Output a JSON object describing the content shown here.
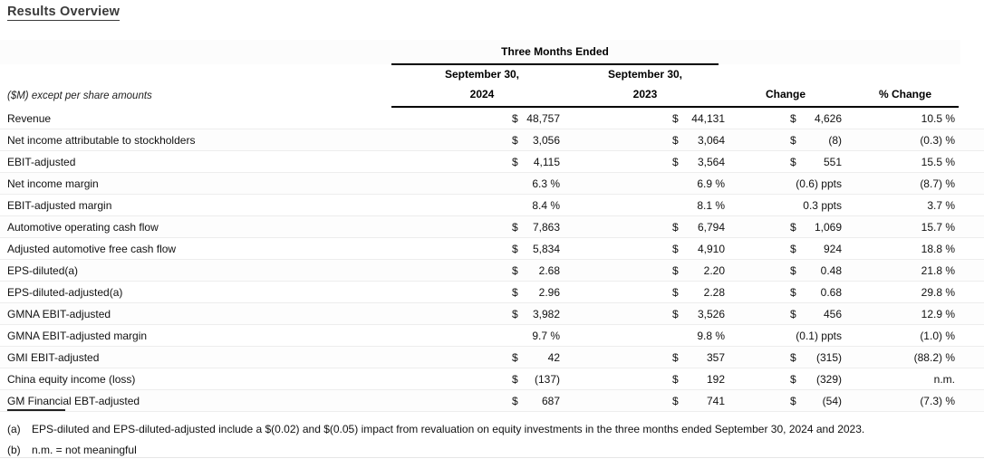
{
  "page": {
    "title": "Results Overview"
  },
  "colors": {
    "title_text": "#3a3a3a",
    "body_text": "#1a1a1a",
    "rule_black": "#000000",
    "row_separator": "#ededed"
  },
  "table": {
    "col_group_header": "Three Months Ended",
    "unit_note": "($M) except per share amounts",
    "columns": {
      "y2024_line1": "September 30,",
      "y2024_line2": "2024",
      "y2023_line1": "September 30,",
      "y2023_line2": "2023",
      "change": "Change",
      "pct_change": "% Change"
    },
    "rows": [
      {
        "label": "Revenue",
        "d24": "$",
        "v24": "48,757",
        "d23": "$",
        "v23": "44,131",
        "dch": "$",
        "vch": "4,626",
        "pct": "10.5 %"
      },
      {
        "label": "Net income attributable to stockholders",
        "d24": "$",
        "v24": "3,056",
        "d23": "$",
        "v23": "3,064",
        "dch": "$",
        "vch": "(8)",
        "pct": "(0.3) %"
      },
      {
        "label": "EBIT-adjusted",
        "d24": "$",
        "v24": "4,115",
        "d23": "$",
        "v23": "3,564",
        "dch": "$",
        "vch": "551",
        "pct": "15.5 %"
      },
      {
        "label": "Net income margin",
        "d24": "",
        "v24": "6.3 %",
        "d23": "",
        "v23": "6.9 %",
        "dch": "",
        "vch": "(0.6) ppts",
        "pct": "(8.7) %"
      },
      {
        "label": "EBIT-adjusted margin",
        "d24": "",
        "v24": "8.4 %",
        "d23": "",
        "v23": "8.1 %",
        "dch": "",
        "vch": "0.3 ppts",
        "pct": "3.7 %"
      },
      {
        "label": "Automotive operating cash flow",
        "d24": "$",
        "v24": "7,863",
        "d23": "$",
        "v23": "6,794",
        "dch": "$",
        "vch": "1,069",
        "pct": "15.7 %"
      },
      {
        "label": "Adjusted automotive free cash flow",
        "d24": "$",
        "v24": "5,834",
        "d23": "$",
        "v23": "4,910",
        "dch": "$",
        "vch": "924",
        "pct": "18.8 %"
      },
      {
        "label": "EPS-diluted(a)",
        "d24": "$",
        "v24": "2.68",
        "d23": "$",
        "v23": "2.20",
        "dch": "$",
        "vch": "0.48",
        "pct": "21.8 %"
      },
      {
        "label": "EPS-diluted-adjusted(a)",
        "d24": "$",
        "v24": "2.96",
        "d23": "$",
        "v23": "2.28",
        "dch": "$",
        "vch": "0.68",
        "pct": "29.8 %"
      },
      {
        "label": "GMNA EBIT-adjusted",
        "d24": "$",
        "v24": "3,982",
        "d23": "$",
        "v23": "3,526",
        "dch": "$",
        "vch": "456",
        "pct": "12.9 %"
      },
      {
        "label": "GMNA EBIT-adjusted margin",
        "d24": "",
        "v24": "9.7 %",
        "d23": "",
        "v23": "9.8 %",
        "dch": "",
        "vch": "(0.1) ppts",
        "pct": "(1.0) %"
      },
      {
        "label": "GMI EBIT-adjusted",
        "d24": "$",
        "v24": "42",
        "d23": "$",
        "v23": "357",
        "dch": "$",
        "vch": "(315)",
        "pct": "(88.2) %"
      },
      {
        "label": "China equity income (loss)",
        "d24": "$",
        "v24": "(137)",
        "d23": "$",
        "v23": "192",
        "dch": "$",
        "vch": "(329)",
        "pct": "n.m."
      },
      {
        "label": "GM Financial EBT-adjusted",
        "d24": "$",
        "v24": "687",
        "d23": "$",
        "v23": "741",
        "dch": "$",
        "vch": "(54)",
        "pct": "(7.3) %"
      }
    ]
  },
  "footnotes": [
    {
      "marker": "(a)",
      "text": "EPS-diluted and EPS-diluted-adjusted include a $(0.02) and $(0.05) impact from revaluation on equity investments in the three months ended September 30, 2024 and 2023."
    },
    {
      "marker": "(b)",
      "text": "n.m. = not meaningful"
    }
  ]
}
